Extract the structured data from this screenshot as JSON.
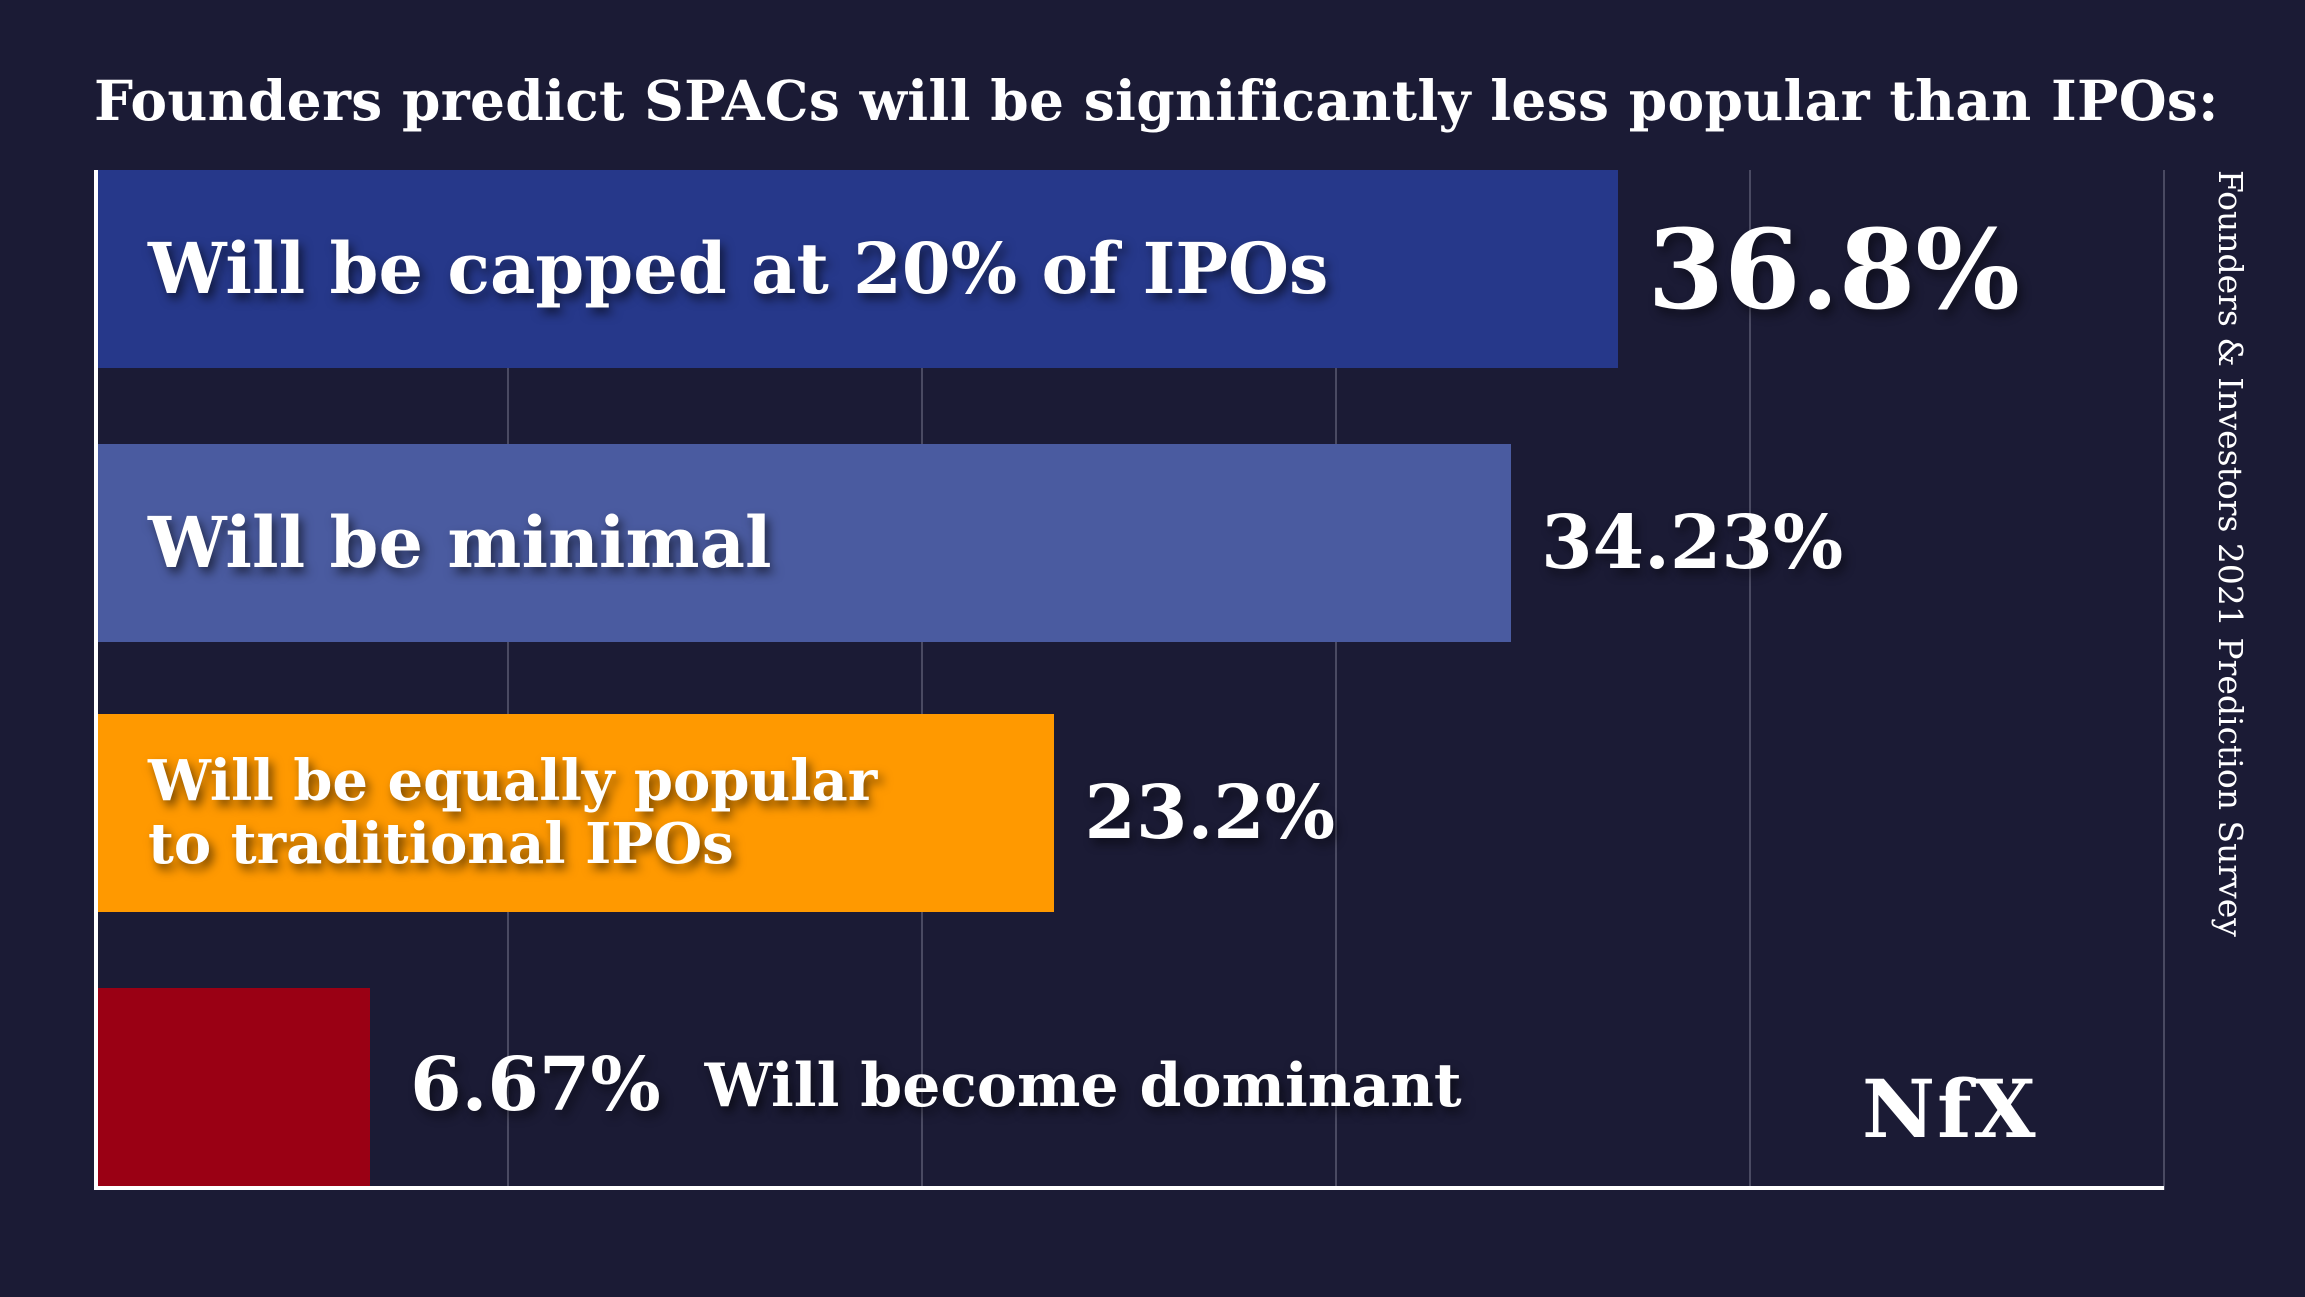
{
  "title": "Founders predict SPACs will be significantly less popular than IPOs:",
  "side_caption": "Founders & Investors 2021 Prediction Survey",
  "logo": "NfX",
  "colors": {
    "background": "#1b1b35",
    "bar_1": "#26388a",
    "bar_2": "#4a5ba0",
    "bar_3": "#ff9900",
    "bar_4": "#9a0014"
  },
  "chart_data": {
    "type": "bar",
    "orientation": "horizontal",
    "categories": [
      "Will be capped at 20% of IPOs",
      "Will be minimal",
      "Will be equally popular to traditional IPOs",
      "Will become dominant"
    ],
    "category_lines": [
      [
        "Will be capped at 20% of IPOs"
      ],
      [
        "Will be minimal"
      ],
      [
        "Will be equally popular",
        "to traditional IPOs"
      ],
      [
        "Will become dominant"
      ]
    ],
    "values": [
      36.8,
      34.23,
      23.2,
      6.67
    ],
    "value_labels": [
      "36.8%",
      "34.23%",
      "23.2%",
      "6.67%"
    ],
    "xlim": [
      0,
      50
    ],
    "grid": true
  }
}
